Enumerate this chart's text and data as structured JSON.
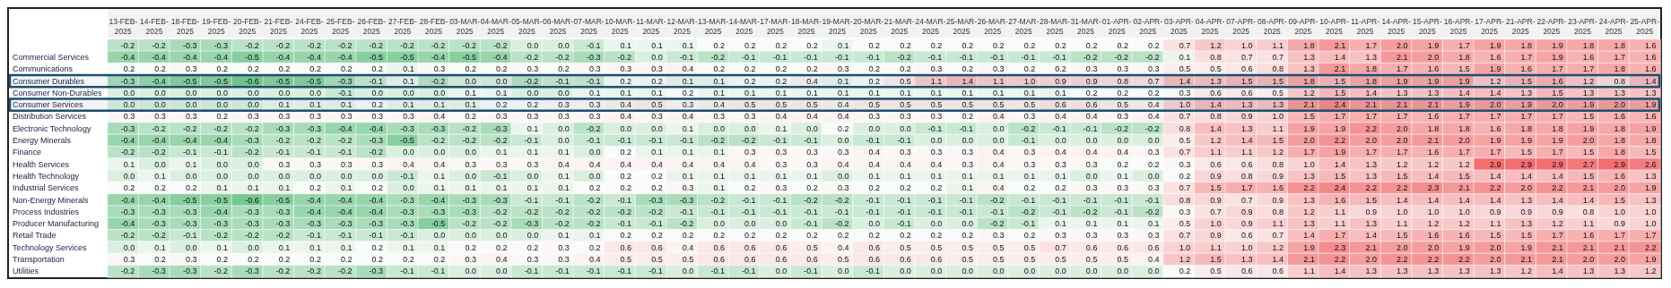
{
  "chart_data": {
    "type": "heatmap",
    "cell_labels": [
      [
        "-0.2",
        "-0.2",
        "-0.3",
        "-0.3",
        "-0.2",
        "-0.2",
        "-0.2",
        "-0.2",
        "-0.2",
        "-0.2",
        "-0.2",
        "-0.2",
        "-0.2",
        "0.0",
        "0.0",
        "-0.1",
        "0.1",
        "0.1",
        "0.1",
        "0.2",
        "0.2",
        "0.2",
        "0.2",
        "0.1",
        "0.2",
        "0.2",
        "0.2",
        "0.2",
        "0.2",
        "0.2",
        "0.2",
        "0.2",
        "0.2",
        "0.2",
        "0.7",
        "1.2",
        "1.0",
        "1.1",
        "1.8",
        "2.1",
        "1.7",
        "2.0",
        "1.9",
        "1.7",
        "1.9",
        "1.8",
        "1.9",
        "1.8",
        "1.8",
        "1.6"
      ],
      [
        "-0.4",
        "-0.4",
        "-0.4",
        "-0.4",
        "-0.5",
        "-0.4",
        "-0.4",
        "-0.4",
        "-0.5",
        "-0.5",
        "-0.4",
        "-0.5",
        "-0.4",
        "-0.2",
        "-0.2",
        "-0.3",
        "-0.2",
        "0.0",
        "-0.1",
        "-0.2",
        "-0.1",
        "-0.1",
        "-0.1",
        "-0.1",
        "-0.1",
        "-0.2",
        "-0.1",
        "-0.1",
        "-0.1",
        "-0.1",
        "-0.1",
        "-0.2",
        "-0.2",
        "-0.2",
        "0.1",
        "0.8",
        "0.7",
        "0.7",
        "1.3",
        "1.4",
        "1.3",
        "2.1",
        "2.0",
        "1.8",
        "1.6",
        "1.7",
        "1.9",
        "1.6",
        "1.7",
        "1.6"
      ],
      [
        "0.2",
        "0.2",
        "0.3",
        "0.2",
        "0.2",
        "0.2",
        "0.2",
        "0.2",
        "0.2",
        "0.1",
        "0.3",
        "0.2",
        "0.2",
        "0.3",
        "0.2",
        "0.3",
        "0.3",
        "0.3",
        "0.4",
        "0.2",
        "0.2",
        "0.2",
        "0.2",
        "0.3",
        "0.2",
        "0.2",
        "0.3",
        "0.2",
        "0.3",
        "0.2",
        "0.2",
        "0.3",
        "0.3",
        "0.3",
        "0.5",
        "0.5",
        "0.6",
        "0.8",
        "1.3",
        "2.1",
        "1.8",
        "1.7",
        "1.6",
        "1.5",
        "1.9",
        "1.6",
        "1.7",
        "1.7",
        "1.8",
        "1.6"
      ],
      [
        "-0.3",
        "-0.4",
        "-0.5",
        "-0.5",
        "-0.6",
        "-0.5",
        "-0.5",
        "-0.3",
        "-0.1",
        "0.1",
        "-0.2",
        "0.0",
        "0.0",
        "-0.2",
        "-0.1",
        "-0.1",
        "0.2",
        "0.2",
        "0.1",
        "0.1",
        "0.2",
        "0.2",
        "0.4",
        "0.1",
        "0.2",
        "0.5",
        "1.1",
        "1.4",
        "1.1",
        "1.0",
        "0.9",
        "0.9",
        "0.8",
        "0.7",
        "1.4",
        "1.3",
        "1.5",
        "1.5",
        "1.8",
        "1.5",
        "1.8",
        "1.9",
        "1.9",
        "1.9",
        "1.2",
        "1.5",
        "1.6",
        "1.2",
        "0.8",
        "1.4"
      ],
      [
        "0.0",
        "0.0",
        "0.0",
        "0.0",
        "0.0",
        "0.0",
        "0.0",
        "-0.1",
        "0.0",
        "0.0",
        "0.0",
        "0.1",
        "0.1",
        "0.0",
        "0.0",
        "0.1",
        "0.1",
        "0.1",
        "0.2",
        "0.1",
        "0.1",
        "0.1",
        "0.1",
        "0.1",
        "0.1",
        "0.1",
        "0.1",
        "0.1",
        "0.1",
        "0.1",
        "0.1",
        "0.2",
        "0.2",
        "0.2",
        "0.3",
        "0.6",
        "0.6",
        "0.5",
        "1.2",
        "1.5",
        "1.4",
        "1.3",
        "1.3",
        "1.4",
        "1.4",
        "1.3",
        "1.5",
        "1.3",
        "1.3",
        "1.3"
      ],
      [
        "0.0",
        "0.0",
        "0.0",
        "0.0",
        "0.0",
        "0.1",
        "0.1",
        "0.1",
        "0.2",
        "0.1",
        "0.1",
        "0.1",
        "0.2",
        "0.2",
        "0.3",
        "0.3",
        "0.4",
        "0.5",
        "0.3",
        "0.4",
        "0.5",
        "0.5",
        "0.5",
        "0.4",
        "0.5",
        "0.5",
        "0.5",
        "0.5",
        "0.5",
        "0.5",
        "0.6",
        "0.6",
        "0.5",
        "0.4",
        "1.0",
        "1.4",
        "1.3",
        "1.3",
        "2.1",
        "2.4",
        "2.1",
        "2.1",
        "2.1",
        "1.9",
        "2.0",
        "1.9",
        "2.0",
        "1.9",
        "2.0",
        "1.9"
      ],
      [
        "0.3",
        "0.3",
        "0.3",
        "0.2",
        "0.3",
        "0.3",
        "0.3",
        "0.3",
        "0.3",
        "0.3",
        "0.4",
        "0.2",
        "0.3",
        "0.3",
        "0.3",
        "0.3",
        "0.4",
        "0.3",
        "0.4",
        "0.3",
        "0.3",
        "0.4",
        "0.4",
        "0.4",
        "0.3",
        "0.3",
        "0.3",
        "0.2",
        "0.4",
        "0.3",
        "0.4",
        "0.4",
        "0.3",
        "0.4",
        "0.7",
        "0.8",
        "0.9",
        "1.0",
        "1.5",
        "1.7",
        "1.7",
        "1.7",
        "1.6",
        "1.7",
        "1.7",
        "1.7",
        "1.7",
        "1.5",
        "1.6",
        "1.6"
      ],
      [
        "-0.3",
        "-0.2",
        "-0.2",
        "-0.2",
        "-0.2",
        "-0.3",
        "-0.3",
        "-0.4",
        "-0.4",
        "-0.3",
        "-0.3",
        "-0.2",
        "-0.3",
        "0.1",
        "0.0",
        "-0.2",
        "0.0",
        "0.0",
        "0.1",
        "0.0",
        "0.0",
        "0.1",
        "0.0",
        "0.2",
        "0.0",
        "0.0",
        "-0.1",
        "-0.1",
        "0.0",
        "-0.2",
        "-0.1",
        "-0.1",
        "-0.2",
        "-0.2",
        "0.8",
        "1.4",
        "1.3",
        "1.1",
        "1.9",
        "1.9",
        "2.2",
        "2.0",
        "1.8",
        "1.8",
        "1.6",
        "1.8",
        "1.8",
        "1.9",
        "1.8",
        "1.9"
      ],
      [
        "-0.4",
        "-0.4",
        "-0.4",
        "-0.4",
        "-0.3",
        "-0.2",
        "-0.2",
        "-0.2",
        "-0.3",
        "-0.5",
        "-0.2",
        "-0.2",
        "-0.2",
        "-0.1",
        "0.0",
        "-0.1",
        "-0.1",
        "-0.1",
        "-0.1",
        "-0.2",
        "-0.2",
        "-0.1",
        "-0.1",
        "0.0",
        "-0.1",
        "-0.1",
        "0.0",
        "0.0",
        "0.0",
        "-0.1",
        "0.0",
        "0.0",
        "0.0",
        "0.0",
        "0.5",
        "1.2",
        "1.4",
        "1.5",
        "2.0",
        "2.2",
        "2.0",
        "2.0",
        "2.1",
        "2.0",
        "1.9",
        "1.9",
        "1.9",
        "2.0",
        "1.8",
        "1.8"
      ],
      [
        "-0.2",
        "-0.2",
        "-0.1",
        "-0.1",
        "-0.2",
        "-0.1",
        "-0.1",
        "-0.1",
        "-0.2",
        "0.0",
        "0.0",
        "0.0",
        "0.1",
        "0.1",
        "0.1",
        "0.0",
        "0.2",
        "0.1",
        "0.1",
        "0.1",
        "0.3",
        "0.3",
        "0.3",
        "0.3",
        "0.4",
        "0.3",
        "0.3",
        "0.3",
        "0.4",
        "0.3",
        "0.4",
        "0.4",
        "0.4",
        "0.3",
        "0.7",
        "1.1",
        "1.1",
        "1.2",
        "1.7",
        "1.9",
        "1.7",
        "1.7",
        "1.6",
        "1.7",
        "1.7",
        "1.5",
        "1.7",
        "1.5",
        "1.8",
        "1.5"
      ],
      [
        "0.1",
        "0.0",
        "0.1",
        "0.0",
        "0.0",
        "0.3",
        "0.3",
        "0.3",
        "0.3",
        "0.4",
        "0.4",
        "0.3",
        "0.3",
        "0.3",
        "0.4",
        "0.4",
        "0.4",
        "0.4",
        "0.4",
        "0.4",
        "0.4",
        "0.3",
        "0.3",
        "0.4",
        "0.4",
        "0.4",
        "0.4",
        "0.3",
        "0.4",
        "0.3",
        "0.3",
        "0.3",
        "0.2",
        "0.2",
        "0.3",
        "0.6",
        "0.6",
        "0.8",
        "1.0",
        "1.4",
        "1.3",
        "1.2",
        "1.2",
        "1.2",
        "2.9",
        "2.9",
        "2.9",
        "2.7",
        "2.9",
        "2.6"
      ],
      [
        "0.0",
        "0.1",
        "0.0",
        "0.0",
        "0.0",
        "0.0",
        "0.0",
        "0.0",
        "0.0",
        "-0.1",
        "0.1",
        "0.0",
        "-0.1",
        "0.0",
        "0.1",
        "0.0",
        "0.2",
        "0.2",
        "0.1",
        "0.1",
        "0.1",
        "0.1",
        "0.1",
        "0.0",
        "0.1",
        "0.1",
        "0.1",
        "0.1",
        "0.1",
        "0.1",
        "0.1",
        "0.0",
        "0.1",
        "0.0",
        "0.2",
        "0.9",
        "0.8",
        "0.9",
        "1.3",
        "1.5",
        "1.3",
        "1.5",
        "1.4",
        "1.5",
        "1.4",
        "1.4",
        "1.4",
        "1.5",
        "1.6",
        "1.3"
      ],
      [
        "0.2",
        "0.2",
        "0.2",
        "0.1",
        "0.1",
        "0.1",
        "0.2",
        "0.1",
        "0.2",
        "0.0",
        "0.1",
        "0.1",
        "0.1",
        "0.1",
        "0.1",
        "0.2",
        "0.2",
        "0.2",
        "0.3",
        "0.1",
        "0.2",
        "0.3",
        "0.2",
        "0.3",
        "0.2",
        "0.2",
        "0.2",
        "0.1",
        "0.4",
        "0.2",
        "0.2",
        "0.3",
        "0.3",
        "0.3",
        "0.7",
        "1.5",
        "1.7",
        "1.6",
        "2.2",
        "2.4",
        "2.2",
        "2.2",
        "2.3",
        "2.1",
        "2.2",
        "2.0",
        "2.2",
        "2.1",
        "2.0",
        "1.9"
      ],
      [
        "-0.4",
        "-0.4",
        "-0.5",
        "-0.5",
        "-0.6",
        "-0.5",
        "-0.4",
        "-0.4",
        "-0.4",
        "-0.3",
        "-0.4",
        "-0.3",
        "-0.3",
        "-0.1",
        "-0.1",
        "-0.2",
        "-0.1",
        "-0.3",
        "-0.3",
        "-0.2",
        "-0.1",
        "-0.1",
        "-0.2",
        "-0.2",
        "-0.1",
        "-0.1",
        "-0.1",
        "-0.1",
        "-0.2",
        "-0.1",
        "-0.1",
        "-0.1",
        "-0.1",
        "-0.1",
        "0.8",
        "0.9",
        "0.7",
        "0.9",
        "1.3",
        "1.6",
        "1.5",
        "1.4",
        "1.4",
        "1.4",
        "1.4",
        "1.3",
        "1.4",
        "1.4",
        "1.5",
        "1.3"
      ],
      [
        "-0.3",
        "-0.3",
        "-0.3",
        "-0.4",
        "-0.3",
        "-0.3",
        "-0.4",
        "-0.4",
        "-0.4",
        "-0.3",
        "-0.3",
        "-0.3",
        "-0.2",
        "-0.2",
        "-0.2",
        "-0.2",
        "-0.2",
        "-0.2",
        "-0.1",
        "-0.1",
        "-0.1",
        "-0.1",
        "-0.1",
        "-0.1",
        "-0.1",
        "-0.1",
        "-0.1",
        "-0.1",
        "-0.1",
        "-0.2",
        "-0.1",
        "-0.2",
        "-0.1",
        "-0.2",
        "0.3",
        "0.7",
        "0.9",
        "0.8",
        "1.2",
        "1.1",
        "0.9",
        "1.0",
        "1.0",
        "1.0",
        "0.9",
        "0.9",
        "0.9",
        "0.8",
        "1.0",
        "1.0"
      ],
      [
        "-0.4",
        "-0.3",
        "-0.3",
        "-0.3",
        "-0.3",
        "-0.3",
        "-0.3",
        "-0.3",
        "-0.3",
        "-0.3",
        "-0.5",
        "-0.2",
        "-0.2",
        "-0.3",
        "-0.2",
        "-0.2",
        "-0.1",
        "-0.1",
        "-0.2",
        "0.0",
        "0.0",
        "0.0",
        "-0.1",
        "-0.2",
        "0.0",
        "-0.1",
        "0.0",
        "0.0",
        "-0.2",
        "-0.1",
        "0.1",
        "0.1",
        "0.1",
        "0.1",
        "0.5",
        "1.0",
        "0.9",
        "1.1",
        "1.3",
        "1.1",
        "1.3",
        "1.1",
        "1.2",
        "1.2",
        "1.1",
        "1.3",
        "1.2",
        "1.1",
        "0.9",
        "1.0"
      ],
      [
        "-0.2",
        "-0.2",
        "-0.1",
        "-0.2",
        "-0.2",
        "-0.2",
        "-0.1",
        "-0.1",
        "-0.1",
        "-0.1",
        "0.0",
        "0.0",
        "0.0",
        "0.0",
        "0.1",
        "0.1",
        "0.2",
        "0.2",
        "0.2",
        "0.2",
        "0.2",
        "0.2",
        "0.2",
        "0.2",
        "0.2",
        "0.2",
        "0.2",
        "0.2",
        "0.3",
        "0.2",
        "0.3",
        "0.3",
        "0.3",
        "0.3",
        "0.7",
        "0.9",
        "0.6",
        "0.7",
        "1.4",
        "1.7",
        "1.4",
        "1.5",
        "1.6",
        "1.6",
        "1.5",
        "1.5",
        "1.7",
        "1.6",
        "1.7",
        "1.7"
      ],
      [
        "0.0",
        "0.1",
        "0.0",
        "0.1",
        "0.0",
        "0.1",
        "0.1",
        "0.1",
        "0.2",
        "0.1",
        "0.1",
        "0.2",
        "0.2",
        "0.2",
        "0.3",
        "0.2",
        "0.6",
        "0.6",
        "0.4",
        "0.6",
        "0.6",
        "0.6",
        "0.5",
        "0.4",
        "0.6",
        "0.5",
        "0.5",
        "0.5",
        "0.5",
        "0.5",
        "0.7",
        "0.6",
        "0.6",
        "0.6",
        "1.0",
        "1.1",
        "1.0",
        "1.2",
        "1.9",
        "2.3",
        "2.1",
        "2.0",
        "2.0",
        "1.9",
        "2.0",
        "1.9",
        "2.1",
        "2.1",
        "2.1",
        "2.2"
      ],
      [
        "0.3",
        "0.2",
        "0.3",
        "0.2",
        "0.2",
        "0.2",
        "0.2",
        "0.2",
        "0.2",
        "0.2",
        "0.2",
        "0.3",
        "0.4",
        "0.3",
        "0.3",
        "0.4",
        "0.5",
        "0.5",
        "0.5",
        "0.6",
        "0.6",
        "0.6",
        "0.6",
        "0.5",
        "0.6",
        "0.6",
        "0.6",
        "0.5",
        "0.5",
        "0.5",
        "0.5",
        "0.5",
        "0.5",
        "0.4",
        "1.2",
        "1.5",
        "1.3",
        "1.4",
        "2.1",
        "2.2",
        "2.0",
        "2.2",
        "2.2",
        "2.2",
        "2.0",
        "2.1",
        "2.1",
        "2.0",
        "2.0",
        "1.9"
      ],
      [
        "-0.2",
        "-0.3",
        "-0.3",
        "-0.2",
        "-0.3",
        "-0.2",
        "-0.2",
        "-0.2",
        "-0.3",
        "-0.1",
        "-0.1",
        "0.0",
        "0.0",
        "-0.1",
        "-0.1",
        "-0.1",
        "-0.1",
        "-0.1",
        "0.0",
        "-0.1",
        "-0.1",
        "0.0",
        "-0.1",
        "0.0",
        "-0.1",
        "0.0",
        "0.0",
        "0.0",
        "0.0",
        "0.0",
        "0.0",
        "0.0",
        "0.0",
        "0.0",
        "0.2",
        "0.5",
        "0.6",
        "0.6",
        "1.1",
        "1.4",
        "1.3",
        "1.3",
        "1.3",
        "1.3",
        "1.3",
        "1.2",
        "1.4",
        "1.3",
        "1.3",
        "1.2"
      ]
    ],
    "categories": [
      "13-FEB-2025",
      "14-FEB-2025",
      "18-FEB-2025",
      "19-FEB-2025",
      "20-FEB-2025",
      "21-FEB-2025",
      "24-FEB-2025",
      "25-FEB-2025",
      "26-FEB-2025",
      "27-FEB-2025",
      "28-FEB-2025",
      "03-MAR-2025",
      "04-MAR-2025",
      "05-MAR-2025",
      "06-MAR-2025",
      "07-MAR-2025",
      "10-MAR-2025",
      "11-MAR-2025",
      "12-MAR-2025",
      "13-MAR-2025",
      "14-MAR-2025",
      "17-MAR-2025",
      "18-MAR-2025",
      "19-MAR-2025",
      "20-MAR-2025",
      "21-MAR-2025",
      "24-MAR-2025",
      "25-MAR-2025",
      "26-MAR-2025",
      "27-MAR-2025",
      "28-MAR-2025",
      "31-MAR-2025",
      "01-APR-2025",
      "02-APR-2025",
      "03-APR-2025",
      "04-APR-2025",
      "07-APR-2025",
      "08-APR-2025",
      "09-APR-2025",
      "10-APR-2025",
      "11-APR-2025",
      "14-APR-2025",
      "15-APR-2025",
      "16-APR-2025",
      "17-APR-2025",
      "21-APR-2025",
      "22-APR-2025",
      "23-APR-2025",
      "24-APR-2025",
      "25-APR-2025"
    ],
    "y_categories": [
      null,
      "Commercial Services",
      "Communications",
      "Consumer Durables",
      "Consumer Non-Durables",
      "Consumer Services",
      "Distribution Services",
      "Electronic Technology",
      "Energy Minerals",
      "Finance",
      "Health Services",
      "Health Technology",
      "Industrial Services",
      "Non-Energy Minerals",
      "Process Industries",
      "Producer Manufacturing",
      "Retail Trade",
      "Technology Services",
      "Transportation",
      "Utilities"
    ],
    "bands": [
      {
        "axis": "y",
        "from": "Consumer Durables",
        "to": "Consumer Durables",
        "color": "#1d4f6e"
      },
      {
        "axis": "y",
        "from": "Consumer Services",
        "to": "Consumer Services",
        "color": "#1d4f6e"
      }
    ],
    "cells": [
      [
        -0.2,
        -0.2,
        -0.3,
        -0.3,
        -0.2,
        -0.2,
        -0.2,
        -0.2,
        -0.2,
        -0.2,
        -0.2,
        -0.2,
        -0.2,
        0.0,
        0.0,
        -0.1,
        0.1,
        0.1,
        0.1,
        0.2,
        0.2,
        0.2,
        0.2,
        0.1,
        0.2,
        0.2,
        0.2,
        0.2,
        0.2,
        0.2,
        0.2,
        0.2,
        0.2,
        0.2,
        0.7,
        1.2,
        1.0,
        1.1,
        1.8,
        2.1,
        1.7,
        2.0,
        1.9,
        1.7,
        1.9,
        1.8,
        1.9,
        1.8,
        1.8,
        1.6
      ],
      [
        -0.4,
        -0.4,
        -0.4,
        -0.4,
        -0.5,
        -0.4,
        -0.4,
        -0.4,
        -0.5,
        -0.5,
        -0.4,
        -0.5,
        -0.4,
        -0.2,
        -0.2,
        -0.3,
        -0.2,
        0.0,
        -0.1,
        -0.2,
        -0.1,
        -0.1,
        -0.1,
        -0.1,
        -0.1,
        -0.2,
        -0.1,
        -0.1,
        -0.1,
        -0.1,
        -0.1,
        -0.2,
        -0.2,
        -0.2,
        0.1,
        0.8,
        0.7,
        0.7,
        1.3,
        1.4,
        1.3,
        2.1,
        2.0,
        1.8,
        1.6,
        1.7,
        1.9,
        1.6,
        1.7,
        1.6
      ],
      [
        0.2,
        0.2,
        0.3,
        0.2,
        0.2,
        0.2,
        0.2,
        0.2,
        0.2,
        0.1,
        0.3,
        0.2,
        0.2,
        0.3,
        0.2,
        0.3,
        0.3,
        0.3,
        0.4,
        0.2,
        0.2,
        0.2,
        0.2,
        0.3,
        0.2,
        0.2,
        0.3,
        0.2,
        0.3,
        0.2,
        0.2,
        0.3,
        0.3,
        0.3,
        0.5,
        0.5,
        0.6,
        0.8,
        1.3,
        2.1,
        1.8,
        1.7,
        1.6,
        1.5,
        1.9,
        1.6,
        1.7,
        1.7,
        1.8,
        1.6
      ],
      [
        -0.3,
        -0.4,
        -0.5,
        -0.5,
        -0.6,
        -0.5,
        -0.5,
        -0.3,
        -0.1,
        0.1,
        -0.2,
        0.0,
        0.0,
        -0.2,
        -0.1,
        -0.1,
        0.2,
        0.2,
        0.1,
        0.1,
        0.2,
        0.2,
        0.4,
        0.1,
        0.2,
        0.5,
        1.1,
        1.4,
        1.1,
        1.0,
        0.9,
        0.9,
        0.8,
        0.7,
        1.4,
        1.3,
        1.5,
        1.5,
        1.8,
        1.5,
        1.8,
        1.9,
        1.9,
        1.9,
        1.2,
        1.5,
        1.6,
        1.2,
        0.8,
        1.4
      ],
      [
        0.0,
        0.0,
        0.0,
        0.0,
        0.0,
        0.0,
        0.0,
        -0.1,
        0.0,
        0.0,
        0.0,
        0.1,
        0.1,
        0.0,
        0.0,
        0.1,
        0.1,
        0.1,
        0.2,
        0.1,
        0.1,
        0.1,
        0.1,
        0.1,
        0.1,
        0.1,
        0.1,
        0.1,
        0.1,
        0.1,
        0.1,
        0.2,
        0.2,
        0.2,
        0.3,
        0.6,
        0.6,
        0.5,
        1.2,
        1.5,
        1.4,
        1.3,
        1.3,
        1.4,
        1.4,
        1.3,
        1.5,
        1.3,
        1.3,
        1.3
      ],
      [
        0.0,
        0.0,
        0.0,
        0.0,
        0.0,
        0.1,
        0.1,
        0.1,
        0.2,
        0.1,
        0.1,
        0.1,
        0.2,
        0.2,
        0.3,
        0.3,
        0.4,
        0.5,
        0.3,
        0.4,
        0.5,
        0.5,
        0.5,
        0.4,
        0.5,
        0.5,
        0.5,
        0.5,
        0.5,
        0.5,
        0.6,
        0.6,
        0.5,
        0.4,
        1.0,
        1.4,
        1.3,
        1.3,
        2.1,
        2.4,
        2.1,
        2.1,
        2.1,
        1.9,
        2.0,
        1.9,
        2.0,
        1.9,
        2.0,
        1.9
      ],
      [
        0.3,
        0.3,
        0.3,
        0.2,
        0.3,
        0.3,
        0.3,
        0.3,
        0.3,
        0.3,
        0.4,
        0.2,
        0.3,
        0.3,
        0.3,
        0.3,
        0.4,
        0.3,
        0.4,
        0.3,
        0.3,
        0.4,
        0.4,
        0.4,
        0.3,
        0.3,
        0.3,
        0.2,
        0.4,
        0.3,
        0.4,
        0.4,
        0.3,
        0.4,
        0.7,
        0.8,
        0.9,
        1.0,
        1.5,
        1.7,
        1.7,
        1.7,
        1.6,
        1.7,
        1.7,
        1.7,
        1.7,
        1.5,
        1.6,
        1.6
      ],
      [
        -0.3,
        -0.2,
        -0.2,
        -0.2,
        -0.2,
        -0.3,
        -0.3,
        -0.4,
        -0.4,
        -0.3,
        -0.3,
        -0.2,
        -0.3,
        0.1,
        0.0,
        -0.2,
        0.0,
        0.0,
        0.1,
        0.0,
        0.0,
        0.1,
        0.0,
        0.2,
        0.0,
        0.0,
        -0.1,
        -0.1,
        0.0,
        -0.2,
        -0.1,
        -0.1,
        -0.2,
        -0.2,
        0.8,
        1.4,
        1.3,
        1.1,
        1.9,
        1.9,
        2.2,
        2.0,
        1.8,
        1.8,
        1.6,
        1.8,
        1.8,
        1.9,
        1.8,
        1.9
      ],
      [
        -0.4,
        -0.4,
        -0.4,
        -0.4,
        -0.3,
        -0.2,
        -0.2,
        -0.2,
        -0.3,
        -0.5,
        -0.2,
        -0.2,
        -0.2,
        -0.1,
        0.0,
        -0.1,
        -0.1,
        -0.1,
        -0.1,
        -0.2,
        -0.2,
        -0.1,
        -0.1,
        0.0,
        -0.1,
        -0.1,
        0.0,
        0.0,
        0.0,
        -0.1,
        0.0,
        0.0,
        0.0,
        0.0,
        0.5,
        1.2,
        1.4,
        1.5,
        2.0,
        2.2,
        2.0,
        2.0,
        2.1,
        2.0,
        1.9,
        1.9,
        1.9,
        2.0,
        1.8,
        1.8
      ],
      [
        -0.2,
        -0.2,
        -0.1,
        -0.1,
        -0.2,
        -0.1,
        -0.1,
        -0.1,
        -0.2,
        0.0,
        0.0,
        0.0,
        0.1,
        0.1,
        0.1,
        0.0,
        0.2,
        0.1,
        0.1,
        0.1,
        0.3,
        0.3,
        0.3,
        0.3,
        0.4,
        0.3,
        0.3,
        0.3,
        0.4,
        0.3,
        0.4,
        0.4,
        0.4,
        0.3,
        0.7,
        1.1,
        1.1,
        1.2,
        1.7,
        1.9,
        1.7,
        1.7,
        1.6,
        1.7,
        1.7,
        1.5,
        1.7,
        1.5,
        1.8,
        1.5
      ],
      [
        0.1,
        0.0,
        0.1,
        0.0,
        0.0,
        0.3,
        0.3,
        0.3,
        0.3,
        0.4,
        0.4,
        0.3,
        0.3,
        0.3,
        0.4,
        0.4,
        0.4,
        0.4,
        0.4,
        0.4,
        0.4,
        0.3,
        0.3,
        0.4,
        0.4,
        0.4,
        0.4,
        0.3,
        0.4,
        0.3,
        0.3,
        0.3,
        0.2,
        0.2,
        0.3,
        0.6,
        0.6,
        0.8,
        1.0,
        1.4,
        1.3,
        1.2,
        1.2,
        1.2,
        2.9,
        2.9,
        2.9,
        2.7,
        2.9,
        2.6
      ],
      [
        0.0,
        0.1,
        0.0,
        0.0,
        0.0,
        0.0,
        0.0,
        0.0,
        0.0,
        -0.1,
        0.1,
        0.0,
        -0.1,
        0.0,
        0.1,
        0.0,
        0.2,
        0.2,
        0.1,
        0.1,
        0.1,
        0.1,
        0.1,
        0.0,
        0.1,
        0.1,
        0.1,
        0.1,
        0.1,
        0.1,
        0.1,
        0.0,
        0.1,
        0.0,
        0.2,
        0.9,
        0.8,
        0.9,
        1.3,
        1.5,
        1.3,
        1.5,
        1.4,
        1.5,
        1.4,
        1.4,
        1.4,
        1.5,
        1.6,
        1.3
      ],
      [
        0.2,
        0.2,
        0.2,
        0.1,
        0.1,
        0.1,
        0.2,
        0.1,
        0.2,
        0.0,
        0.1,
        0.1,
        0.1,
        0.1,
        0.1,
        0.2,
        0.2,
        0.2,
        0.3,
        0.1,
        0.2,
        0.3,
        0.2,
        0.3,
        0.2,
        0.2,
        0.2,
        0.1,
        0.4,
        0.2,
        0.2,
        0.3,
        0.3,
        0.3,
        0.7,
        1.5,
        1.7,
        1.6,
        2.2,
        2.4,
        2.2,
        2.2,
        2.3,
        2.1,
        2.2,
        2.0,
        2.2,
        2.1,
        2.0,
        1.9
      ],
      [
        -0.4,
        -0.4,
        -0.5,
        -0.5,
        -0.6,
        -0.5,
        -0.4,
        -0.4,
        -0.4,
        -0.3,
        -0.4,
        -0.3,
        -0.3,
        -0.1,
        -0.1,
        -0.2,
        -0.1,
        -0.3,
        -0.3,
        -0.2,
        -0.1,
        -0.1,
        -0.2,
        -0.2,
        -0.1,
        -0.1,
        -0.1,
        -0.1,
        -0.2,
        -0.1,
        -0.1,
        -0.1,
        -0.1,
        -0.1,
        0.8,
        0.9,
        0.7,
        0.9,
        1.3,
        1.6,
        1.5,
        1.4,
        1.4,
        1.4,
        1.4,
        1.3,
        1.4,
        1.4,
        1.5,
        1.3
      ],
      [
        -0.3,
        -0.3,
        -0.3,
        -0.4,
        -0.3,
        -0.3,
        -0.4,
        -0.4,
        -0.4,
        -0.3,
        -0.3,
        -0.3,
        -0.2,
        -0.2,
        -0.2,
        -0.2,
        -0.2,
        -0.2,
        -0.1,
        -0.1,
        -0.1,
        -0.1,
        -0.1,
        -0.1,
        -0.1,
        -0.1,
        -0.1,
        -0.1,
        -0.1,
        -0.2,
        -0.1,
        -0.2,
        -0.1,
        -0.2,
        0.3,
        0.7,
        0.9,
        0.8,
        1.2,
        1.1,
        0.9,
        1.0,
        1.0,
        1.0,
        0.9,
        0.9,
        0.9,
        0.8,
        1.0,
        1.0
      ],
      [
        -0.4,
        -0.3,
        -0.3,
        -0.3,
        -0.3,
        -0.3,
        -0.3,
        -0.3,
        -0.3,
        -0.3,
        -0.5,
        -0.2,
        -0.2,
        -0.3,
        -0.2,
        -0.2,
        -0.1,
        -0.1,
        -0.2,
        0.0,
        0.0,
        0.0,
        -0.1,
        -0.2,
        0.0,
        -0.1,
        0.0,
        0.0,
        -0.2,
        -0.1,
        0.1,
        0.1,
        0.1,
        0.1,
        0.5,
        1.0,
        0.9,
        1.1,
        1.3,
        1.1,
        1.3,
        1.1,
        1.2,
        1.2,
        1.1,
        1.3,
        1.2,
        1.1,
        0.9,
        1.0
      ],
      [
        -0.2,
        -0.2,
        -0.1,
        -0.2,
        -0.2,
        -0.2,
        -0.1,
        -0.1,
        -0.1,
        -0.1,
        0.0,
        0.0,
        0.0,
        0.0,
        0.1,
        0.1,
        0.2,
        0.2,
        0.2,
        0.2,
        0.2,
        0.2,
        0.2,
        0.2,
        0.2,
        0.2,
        0.2,
        0.2,
        0.3,
        0.2,
        0.3,
        0.3,
        0.3,
        0.3,
        0.7,
        0.9,
        0.6,
        0.7,
        1.4,
        1.7,
        1.4,
        1.5,
        1.6,
        1.6,
        1.5,
        1.5,
        1.7,
        1.6,
        1.7,
        1.7
      ],
      [
        0.0,
        0.1,
        0.0,
        0.1,
        0.0,
        0.1,
        0.1,
        0.1,
        0.2,
        0.1,
        0.1,
        0.2,
        0.2,
        0.2,
        0.3,
        0.2,
        0.6,
        0.6,
        0.4,
        0.6,
        0.6,
        0.6,
        0.5,
        0.4,
        0.6,
        0.5,
        0.5,
        0.5,
        0.5,
        0.5,
        0.7,
        0.6,
        0.6,
        0.6,
        1.0,
        1.1,
        1.0,
        1.2,
        1.9,
        2.3,
        2.1,
        2.0,
        2.0,
        1.9,
        2.0,
        1.9,
        2.1,
        2.1,
        2.1,
        2.2
      ],
      [
        0.3,
        0.2,
        0.3,
        0.2,
        0.2,
        0.2,
        0.2,
        0.2,
        0.2,
        0.2,
        0.2,
        0.3,
        0.4,
        0.3,
        0.3,
        0.4,
        0.5,
        0.5,
        0.5,
        0.6,
        0.6,
        0.6,
        0.6,
        0.5,
        0.6,
        0.6,
        0.6,
        0.5,
        0.5,
        0.5,
        0.5,
        0.5,
        0.5,
        0.4,
        1.2,
        1.5,
        1.3,
        1.4,
        2.1,
        2.2,
        2.0,
        2.2,
        2.2,
        2.2,
        2.0,
        2.1,
        2.1,
        2.0,
        2.0,
        1.9
      ],
      [
        -0.2,
        -0.3,
        -0.3,
        -0.2,
        -0.3,
        -0.2,
        -0.2,
        -0.2,
        -0.3,
        -0.1,
        -0.1,
        0.0,
        0.0,
        -0.1,
        -0.1,
        -0.1,
        -0.1,
        -0.1,
        0.0,
        -0.1,
        -0.1,
        0.0,
        -0.1,
        0.0,
        -0.1,
        0.0,
        0.0,
        0.0,
        0.0,
        0.0,
        0.0,
        0.0,
        0.0,
        0.0,
        0.2,
        0.5,
        0.6,
        0.6,
        1.1,
        1.4,
        1.3,
        1.3,
        1.3,
        1.3,
        1.3,
        1.2,
        1.4,
        1.3,
        1.3,
        1.2
      ]
    ]
  }
}
